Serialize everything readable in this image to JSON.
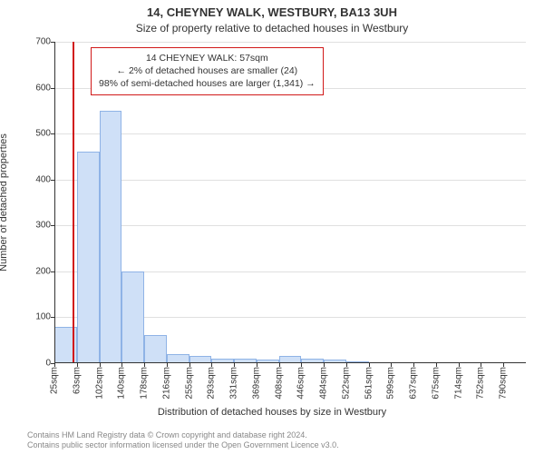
{
  "title": "14, CHEYNEY WALK, WESTBURY, BA13 3UH",
  "subtitle": "Size of property relative to detached houses in Westbury",
  "ylabel": "Number of detached properties",
  "xlabel": "Distribution of detached houses by size in Westbury",
  "footer_line1": "Contains HM Land Registry data © Crown copyright and database right 2024.",
  "footer_line2": "Contains public sector information licensed under the Open Government Licence v3.0.",
  "chart": {
    "type": "histogram",
    "background_color": "#ffffff",
    "grid_color": "#e0e0e0",
    "axis_color": "#333333",
    "bar_fill": "#cfe0f7",
    "bar_border": "#8fb3e6",
    "bar_border_width": 1,
    "marker_color": "#d11919",
    "marker_value_sqm": 57,
    "x_start": 25,
    "x_bin_width": 38.3,
    "n_bins": 21,
    "values": [
      80,
      460,
      550,
      200,
      62,
      20,
      15,
      10,
      10,
      8,
      15,
      10,
      8,
      2,
      0,
      0,
      0,
      0,
      0,
      0,
      0
    ],
    "x_tick_labels": [
      "25sqm",
      "63sqm",
      "102sqm",
      "140sqm",
      "178sqm",
      "216sqm",
      "255sqm",
      "293sqm",
      "331sqm",
      "369sqm",
      "408sqm",
      "446sqm",
      "484sqm",
      "522sqm",
      "561sqm",
      "599sqm",
      "637sqm",
      "675sqm",
      "714sqm",
      "752sqm",
      "790sqm"
    ],
    "ylim": [
      0,
      700
    ],
    "ytick_step": 100,
    "xtick_fontsize": 10,
    "ytick_fontsize": 10,
    "label_fontsize": 11,
    "title_fontsize": 13,
    "subtitle_fontsize": 12,
    "n_xticks_shown": 21
  },
  "legend": {
    "border_color": "#d11919",
    "border_width": 1,
    "line1": "14 CHEYNEY WALK: 57sqm",
    "line2": "← 2% of detached houses are smaller (24)",
    "line3": "98% of semi-detached houses are larger (1,341) →",
    "fontsize": 10.5
  }
}
